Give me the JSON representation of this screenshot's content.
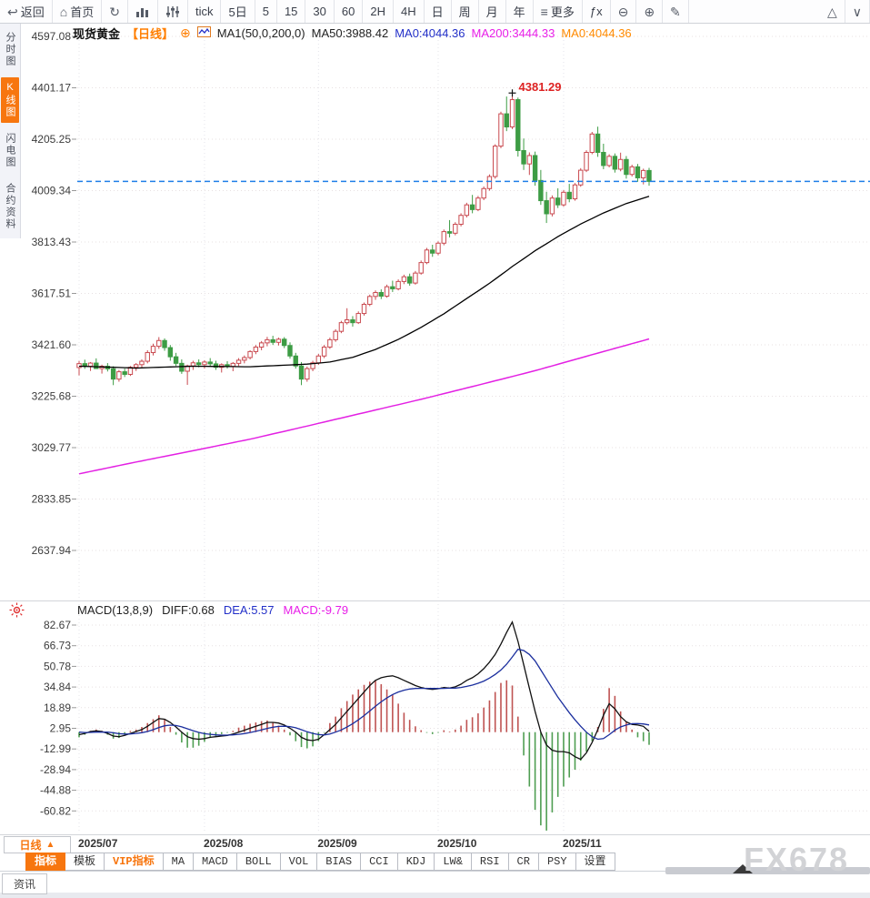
{
  "toolbar": {
    "items": [
      {
        "name": "back",
        "icon": "↩",
        "label": "返回"
      },
      {
        "name": "home",
        "icon": "⌂",
        "label": "首页"
      },
      {
        "name": "refresh",
        "icon": "↻"
      },
      {
        "name": "chart-type",
        "kind": "bars"
      },
      {
        "name": "indicator-tune",
        "kind": "sliders"
      },
      {
        "name": "tf-tick",
        "label": "tick"
      },
      {
        "name": "tf-5d",
        "label": "5日"
      },
      {
        "name": "tf-5",
        "label": "5"
      },
      {
        "name": "tf-15",
        "label": "15"
      },
      {
        "name": "tf-30",
        "label": "30"
      },
      {
        "name": "tf-60",
        "label": "60"
      },
      {
        "name": "tf-2h",
        "label": "2H"
      },
      {
        "name": "tf-4h",
        "label": "4H"
      },
      {
        "name": "tf-day",
        "label": "日"
      },
      {
        "name": "tf-week",
        "label": "周"
      },
      {
        "name": "tf-month",
        "label": "月"
      },
      {
        "name": "tf-year",
        "label": "年"
      },
      {
        "name": "more",
        "icon": "≡",
        "label": "更多"
      },
      {
        "name": "fx",
        "label": "ƒx"
      },
      {
        "name": "zoom-out",
        "icon": "⊖"
      },
      {
        "name": "zoom-in",
        "icon": "⊕"
      },
      {
        "name": "draw",
        "icon": "✎"
      },
      {
        "name": "triangle-up",
        "icon": "△",
        "push": true
      },
      {
        "name": "collapse",
        "icon": "∨"
      }
    ]
  },
  "sidebar": {
    "items": [
      {
        "label": "分时图",
        "active": false
      },
      {
        "label": "K线图",
        "active": true
      },
      {
        "label": "闪电图",
        "active": false
      },
      {
        "label": "合约资料",
        "active": false
      }
    ]
  },
  "price_panel": {
    "header": {
      "symbol": "现货黄金",
      "period_tag": "【日线】",
      "expand_icon": "⊕",
      "ma_settings": "MA1(50,0,200,0)",
      "ma50_label": "MA50:3988.42",
      "ma0_blue": "MA0:4044.36",
      "ma200_label": "MA200:3444.33",
      "ma0_orange": "MA0:4044.36"
    },
    "peak_label": "4381.29",
    "current_price": 4044.36
  },
  "macd_panel": {
    "header": {
      "title": "MACD(13,8,9)",
      "diff_label": "DIFF:0.68",
      "dea_label": "DEA:5.57",
      "macd_label": "MACD:-9.79"
    }
  },
  "bottom": {
    "period_button": "日线",
    "period_arrow": "▲",
    "tabs": [
      {
        "label": "指标",
        "state": "active"
      },
      {
        "label": "模板"
      },
      {
        "label": "VIP指标",
        "accent": true
      },
      {
        "label": "MA"
      },
      {
        "label": "MACD"
      },
      {
        "label": "BOLL"
      },
      {
        "label": "VOL"
      },
      {
        "label": "BIAS"
      },
      {
        "label": "CCI"
      },
      {
        "label": "KDJ"
      },
      {
        "label": "LW&"
      },
      {
        "label": "RSI"
      },
      {
        "label": "CR"
      },
      {
        "label": "PSY"
      },
      {
        "label": "设置"
      }
    ],
    "news_label": "资讯",
    "watermark": "FX678"
  },
  "chart_data": {
    "type": "candlestick",
    "title": "现货黄金 日线 (Spot Gold Daily)",
    "x_labels": [
      "2025/07",
      "2025/08",
      "2025/09",
      "2025/10",
      "2025/11"
    ],
    "month_start_indices": [
      0,
      22,
      42,
      63,
      85
    ],
    "price_axis": {
      "ticks": [
        "4597.08",
        "4401.17",
        "4205.25",
        "4009.34",
        "3813.43",
        "3617.51",
        "3421.60",
        "3225.68",
        "3029.77",
        "2833.85",
        "2637.94"
      ],
      "max": 4597.08,
      "min": 2637.94
    },
    "current_price": 4044.36,
    "peak": {
      "value": 4381.29,
      "label": "4381.29"
    },
    "candles": [
      [
        3335,
        3360,
        3305,
        3350
      ],
      [
        3350,
        3365,
        3330,
        3340
      ],
      [
        3340,
        3356,
        3322,
        3352
      ],
      [
        3352,
        3370,
        3338,
        3331
      ],
      [
        3331,
        3346,
        3312,
        3340
      ],
      [
        3340,
        3352,
        3320,
        3330
      ],
      [
        3330,
        3340,
        3268,
        3291
      ],
      [
        3291,
        3326,
        3281,
        3319
      ],
      [
        3319,
        3331,
        3299,
        3309
      ],
      [
        3309,
        3341,
        3303,
        3336
      ],
      [
        3336,
        3352,
        3322,
        3346
      ],
      [
        3346,
        3366,
        3336,
        3359
      ],
      [
        3359,
        3401,
        3351,
        3392
      ],
      [
        3392,
        3426,
        3381,
        3416
      ],
      [
        3416,
        3451,
        3406,
        3438
      ],
      [
        3438,
        3446,
        3399,
        3411
      ],
      [
        3411,
        3421,
        3361,
        3376
      ],
      [
        3376,
        3391,
        3341,
        3351
      ],
      [
        3351,
        3366,
        3311,
        3321
      ],
      [
        3321,
        3346,
        3269,
        3341
      ],
      [
        3341,
        3361,
        3326,
        3353
      ],
      [
        3353,
        3366,
        3336,
        3346
      ],
      [
        3346,
        3363,
        3331,
        3356
      ],
      [
        3356,
        3371,
        3341,
        3349
      ],
      [
        3349,
        3361,
        3326,
        3336
      ],
      [
        3336,
        3351,
        3316,
        3346
      ],
      [
        3346,
        3359,
        3331,
        3339
      ],
      [
        3339,
        3356,
        3321,
        3351
      ],
      [
        3351,
        3371,
        3341,
        3363
      ],
      [
        3363,
        3381,
        3351,
        3373
      ],
      [
        3373,
        3401,
        3366,
        3396
      ],
      [
        3396,
        3421,
        3386,
        3413
      ],
      [
        3413,
        3436,
        3401,
        3429
      ],
      [
        3429,
        3452,
        3416,
        3441
      ],
      [
        3441,
        3456,
        3421,
        3431
      ],
      [
        3431,
        3449,
        3419,
        3443
      ],
      [
        3443,
        3451,
        3409,
        3419
      ],
      [
        3419,
        3431,
        3369,
        3379
      ],
      [
        3379,
        3391,
        3331,
        3341
      ],
      [
        3341,
        3356,
        3268,
        3291
      ],
      [
        3291,
        3339,
        3281,
        3331
      ],
      [
        3331,
        3361,
        3321,
        3353
      ],
      [
        3353,
        3387,
        3345,
        3379
      ],
      [
        3379,
        3421,
        3371,
        3413
      ],
      [
        3413,
        3449,
        3406,
        3441
      ],
      [
        3441,
        3481,
        3433,
        3473
      ],
      [
        3473,
        3513,
        3466,
        3506
      ],
      [
        3506,
        3561,
        3499,
        3517
      ],
      [
        3517,
        3531,
        3491,
        3506
      ],
      [
        3506,
        3549,
        3501,
        3541
      ],
      [
        3541,
        3583,
        3533,
        3576
      ],
      [
        3576,
        3613,
        3569,
        3606
      ],
      [
        3606,
        3629,
        3593,
        3621
      ],
      [
        3621,
        3633,
        3596,
        3607
      ],
      [
        3607,
        3651,
        3601,
        3643
      ],
      [
        3643,
        3666,
        3623,
        3635
      ],
      [
        3635,
        3671,
        3629,
        3663
      ],
      [
        3663,
        3689,
        3653,
        3681
      ],
      [
        3681,
        3693,
        3647,
        3657
      ],
      [
        3657,
        3703,
        3651,
        3695
      ],
      [
        3695,
        3743,
        3689,
        3735
      ],
      [
        3735,
        3791,
        3729,
        3783
      ],
      [
        3783,
        3803,
        3757,
        3771
      ],
      [
        3771,
        3816,
        3763,
        3809
      ],
      [
        3809,
        3861,
        3801,
        3853
      ],
      [
        3853,
        3897,
        3831,
        3847
      ],
      [
        3847,
        3889,
        3839,
        3881
      ],
      [
        3881,
        3923,
        3873,
        3915
      ],
      [
        3915,
        3963,
        3907,
        3955
      ],
      [
        3955,
        3993,
        3923,
        3937
      ],
      [
        3937,
        3989,
        3931,
        3981
      ],
      [
        3981,
        4025,
        3973,
        4017
      ],
      [
        4017,
        4071,
        4009,
        4063
      ],
      [
        4063,
        4186,
        4055,
        4179
      ],
      [
        4179,
        4310,
        4171,
        4302
      ],
      [
        4302,
        4368,
        4236,
        4252
      ],
      [
        4252,
        4381.29,
        4244,
        4356
      ],
      [
        4356,
        4364,
        4139,
        4162
      ],
      [
        4162,
        4208,
        4088,
        4111
      ],
      [
        4111,
        4155,
        4069,
        4143
      ],
      [
        4143,
        4158,
        4028,
        4048
      ],
      [
        4048,
        4088,
        3955,
        3971
      ],
      [
        3971,
        4005,
        3886,
        3921
      ],
      [
        3921,
        3991,
        3911,
        3981
      ],
      [
        3981,
        4018,
        3943,
        3955
      ],
      [
        3955,
        4011,
        3948,
        4003
      ],
      [
        4003,
        4035,
        3965,
        3978
      ],
      [
        3978,
        4038,
        3971,
        4031
      ],
      [
        4031,
        4095,
        4024,
        4087
      ],
      [
        4087,
        4163,
        4080,
        4155
      ],
      [
        4155,
        4233,
        4148,
        4225
      ],
      [
        4225,
        4253,
        4138,
        4155
      ],
      [
        4155,
        4188,
        4091,
        4105
      ],
      [
        4105,
        4148,
        4098,
        4140
      ],
      [
        4140,
        4151,
        4078,
        4091
      ],
      [
        4091,
        4154,
        4083,
        4128
      ],
      [
        4128,
        4141,
        4055,
        4071
      ],
      [
        4071,
        4108,
        4063,
        4100
      ],
      [
        4100,
        4111,
        4043,
        4058
      ],
      [
        4058,
        4093,
        4033,
        4086
      ],
      [
        4086,
        4096,
        4028,
        4044.36
      ]
    ],
    "ma50_points": [
      [
        0,
        3340
      ],
      [
        10,
        3333
      ],
      [
        20,
        3340
      ],
      [
        30,
        3338
      ],
      [
        40,
        3348
      ],
      [
        44,
        3356
      ],
      [
        48,
        3374
      ],
      [
        52,
        3404
      ],
      [
        56,
        3442
      ],
      [
        60,
        3488
      ],
      [
        64,
        3540
      ],
      [
        68,
        3598
      ],
      [
        72,
        3656
      ],
      [
        76,
        3720
      ],
      [
        80,
        3780
      ],
      [
        84,
        3834
      ],
      [
        88,
        3882
      ],
      [
        92,
        3924
      ],
      [
        96,
        3960
      ],
      [
        100,
        3988
      ]
    ],
    "ma200_points": [
      [
        0,
        2930
      ],
      [
        10,
        2975
      ],
      [
        20,
        3018
      ],
      [
        30,
        3062
      ],
      [
        40,
        3112
      ],
      [
        50,
        3163
      ],
      [
        60,
        3214
      ],
      [
        70,
        3268
      ],
      [
        80,
        3323
      ],
      [
        90,
        3384
      ],
      [
        100,
        3444
      ]
    ],
    "macd": {
      "ticks": [
        "82.67",
        "66.73",
        "50.78",
        "34.84",
        "18.89",
        "2.95",
        "-12.99",
        "-28.94",
        "-44.88",
        "-60.82"
      ],
      "diff": [
        -2,
        -1,
        0.5,
        1,
        0.5,
        -1,
        -3,
        -3.5,
        -2.5,
        -1,
        0.5,
        2,
        4.5,
        7.5,
        10.5,
        10,
        7.5,
        4,
        0,
        -3.5,
        -5,
        -5.5,
        -5,
        -4,
        -3.5,
        -3,
        -2.5,
        -1.5,
        0,
        1.5,
        3,
        4.5,
        6,
        7.5,
        7.5,
        7,
        5.5,
        3,
        0,
        -4,
        -6,
        -6.5,
        -5.5,
        -2,
        2,
        6,
        11,
        16,
        21,
        26,
        31,
        36,
        40,
        42,
        43,
        43.5,
        42,
        40,
        38,
        36,
        34.5,
        33.5,
        33,
        33.5,
        34.5,
        34,
        35,
        37,
        40,
        42,
        45,
        49,
        54,
        60,
        68,
        77,
        85,
        70,
        52,
        34,
        16,
        0,
        -10,
        -14,
        -15,
        -15,
        -16,
        -19,
        -21,
        -16,
        -8,
        2,
        13,
        22,
        18,
        12,
        8,
        6,
        5.5,
        4.5,
        0.68
      ],
      "dea": [
        0,
        -0.3,
        -0.2,
        0,
        0.1,
        0,
        -0.5,
        -1.2,
        -1.5,
        -1.4,
        -1,
        -0.4,
        0.5,
        1.9,
        3.6,
        4.9,
        5.4,
        5.1,
        4.1,
        2.6,
        1.1,
        -0.2,
        -1.2,
        -1.7,
        -2.1,
        -2.3,
        -2.3,
        -2.1,
        -1.7,
        -1.1,
        -0.3,
        0.7,
        1.7,
        2.9,
        3.8,
        4.4,
        4.6,
        4.3,
        3.4,
        1.9,
        0.3,
        -1,
        -1.9,
        -2.2,
        -1.5,
        0,
        1.7,
        3.9,
        6.5,
        9.5,
        12.8,
        16.4,
        20,
        23.4,
        26.4,
        29,
        31,
        32.4,
        33.3,
        33.7,
        33.8,
        33.8,
        33.7,
        33.7,
        33.8,
        33.9,
        34,
        34.5,
        35.3,
        36.3,
        37.7,
        39.4,
        41.7,
        44.5,
        48,
        52.5,
        58,
        64,
        63,
        60,
        55,
        48,
        41,
        34,
        27,
        21,
        15,
        9.5,
        4.5,
        0,
        -3.5,
        -5.5,
        -5,
        -2,
        1.5,
        4,
        5.5,
        6.5,
        6.6,
        6.3,
        5.57
      ],
      "hist": [
        -4,
        -2,
        1,
        2,
        1,
        -2,
        -5,
        -4.5,
        -2,
        1,
        2,
        4,
        7,
        10,
        13,
        10,
        4,
        -2,
        -8,
        -12,
        -12,
        -10.5,
        -7.5,
        -4.5,
        -3,
        -1.5,
        -0.5,
        1,
        3.5,
        5,
        6.5,
        7.5,
        8.5,
        9,
        7.5,
        5,
        2,
        -2.5,
        -7,
        -11.5,
        -12.5,
        -11,
        -7,
        -0.5,
        7,
        12,
        18.5,
        24,
        29,
        33,
        36.5,
        39,
        40,
        37,
        33,
        29,
        22,
        15,
        9.5,
        4.5,
        1.5,
        -0.5,
        -1.5,
        -0.5,
        1.5,
        0.5,
        2,
        5,
        9.5,
        11.5,
        14.5,
        19,
        24.5,
        31,
        38,
        40,
        36,
        12,
        -18,
        -42,
        -60,
        -72,
        -76,
        -62,
        -50,
        -42,
        -35,
        -29,
        -22,
        -15,
        -7,
        4,
        18,
        34,
        28,
        16,
        8,
        2,
        -4,
        -7,
        -9.79
      ]
    },
    "colors": {
      "up_candle": "#c9494f",
      "down_candle": "#3d9c44",
      "ma50": "#000000",
      "ma200": "#e320e3",
      "diff_line": "#111111",
      "dea_line": "#1b2f9e",
      "hist_up": "#bf5352",
      "hist_down": "#4f9e52",
      "current_price_line": "#1f7fe8",
      "peak_text": "#dd2222",
      "accent_orange": "#f7760f"
    }
  }
}
